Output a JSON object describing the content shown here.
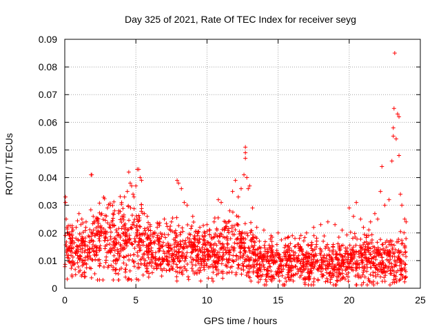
{
  "chart_data": {
    "type": "scatter",
    "title": "Day 325 of 2021, Rate Of TEC Index for receiver seyg",
    "xlabel": "GPS time / hours",
    "ylabel": "ROTI / TECUs",
    "xlim": [
      0,
      25
    ],
    "ylim": [
      0,
      0.09
    ],
    "x_ticks": [
      "0",
      "5",
      "10",
      "15",
      "20",
      "25"
    ],
    "y_ticks": [
      "0",
      "0.01",
      "0.02",
      "0.03",
      "0.04",
      "0.05",
      "0.06",
      "0.07",
      "0.08",
      "0.09"
    ],
    "grid": true,
    "marker": "+",
    "color": "#ff0000",
    "series": [
      {
        "points": [
          [
            0.05,
            0.033
          ],
          [
            0.05,
            0.031
          ],
          [
            0.1,
            0.025
          ],
          [
            0.15,
            0.022
          ],
          [
            0.3,
            0.02
          ],
          [
            0.5,
            0.019
          ],
          [
            0.8,
            0.022
          ],
          [
            1.0,
            0.027
          ],
          [
            1.2,
            0.025
          ],
          [
            1.5,
            0.024
          ],
          [
            1.85,
            0.041
          ],
          [
            1.9,
            0.041
          ],
          [
            2.0,
            0.026
          ],
          [
            2.3,
            0.025
          ],
          [
            2.6,
            0.027
          ],
          [
            3.0,
            0.029
          ],
          [
            3.2,
            0.03
          ],
          [
            3.5,
            0.028
          ],
          [
            3.8,
            0.028
          ],
          [
            4.0,
            0.031
          ],
          [
            4.2,
            0.033
          ],
          [
            4.4,
            0.035
          ],
          [
            4.5,
            0.042
          ],
          [
            4.6,
            0.038
          ],
          [
            4.7,
            0.037
          ],
          [
            4.8,
            0.034
          ],
          [
            5.0,
            0.037
          ],
          [
            5.1,
            0.043
          ],
          [
            5.2,
            0.043
          ],
          [
            5.3,
            0.04
          ],
          [
            5.4,
            0.039
          ],
          [
            5.6,
            0.027
          ],
          [
            5.8,
            0.026
          ],
          [
            6.0,
            0.023
          ],
          [
            6.5,
            0.022
          ],
          [
            7.0,
            0.025
          ],
          [
            7.5,
            0.024
          ],
          [
            7.9,
            0.039
          ],
          [
            8.0,
            0.038
          ],
          [
            8.2,
            0.036
          ],
          [
            8.4,
            0.031
          ],
          [
            8.6,
            0.03
          ],
          [
            9.0,
            0.026
          ],
          [
            9.5,
            0.022
          ],
          [
            10.0,
            0.023
          ],
          [
            10.5,
            0.024
          ],
          [
            10.8,
            0.032
          ],
          [
            11.0,
            0.031
          ],
          [
            11.3,
            0.024
          ],
          [
            11.6,
            0.028
          ],
          [
            11.8,
            0.035
          ],
          [
            12.0,
            0.039
          ],
          [
            12.2,
            0.033
          ],
          [
            12.4,
            0.036
          ],
          [
            12.6,
            0.041
          ],
          [
            12.7,
            0.051
          ],
          [
            12.7,
            0.049
          ],
          [
            12.7,
            0.047
          ],
          [
            12.8,
            0.04
          ],
          [
            12.9,
            0.036
          ],
          [
            13.0,
            0.037
          ],
          [
            13.2,
            0.029
          ],
          [
            13.5,
            0.022
          ],
          [
            14.0,
            0.021
          ],
          [
            14.5,
            0.019
          ],
          [
            15.0,
            0.02
          ],
          [
            15.5,
            0.018
          ],
          [
            16.0,
            0.019
          ],
          [
            16.5,
            0.018
          ],
          [
            17.0,
            0.02
          ],
          [
            17.5,
            0.022
          ],
          [
            18.0,
            0.023
          ],
          [
            18.5,
            0.024
          ],
          [
            19.0,
            0.023
          ],
          [
            19.5,
            0.021
          ],
          [
            20.0,
            0.029
          ],
          [
            20.3,
            0.026
          ],
          [
            20.5,
            0.031
          ],
          [
            20.8,
            0.025
          ],
          [
            21.0,
            0.022
          ],
          [
            21.5,
            0.024
          ],
          [
            21.8,
            0.027
          ],
          [
            22.0,
            0.025
          ],
          [
            22.2,
            0.035
          ],
          [
            22.3,
            0.044
          ],
          [
            22.5,
            0.03
          ],
          [
            22.8,
            0.032
          ],
          [
            23.0,
            0.046
          ],
          [
            23.1,
            0.055
          ],
          [
            23.1,
            0.058
          ],
          [
            23.15,
            0.065
          ],
          [
            23.2,
            0.085
          ],
          [
            23.3,
            0.054
          ],
          [
            23.4,
            0.063
          ],
          [
            23.5,
            0.062
          ],
          [
            23.5,
            0.048
          ],
          [
            23.6,
            0.034
          ],
          [
            23.7,
            0.03
          ],
          [
            23.9,
            0.025
          ],
          [
            24.0,
            0.024
          ]
        ]
      }
    ],
    "dense_band": {
      "x_range": [
        0,
        24
      ],
      "y_range_typical": [
        0.002,
        0.02
      ],
      "description_values": {
        "0-1.8": [
          0.005,
          0.022
        ],
        "1.8-5.5": [
          0.005,
          0.03
        ],
        "5.5-10": [
          0.004,
          0.022
        ],
        "10-13.5": [
          0.004,
          0.024
        ],
        "13.5-20": [
          0.002,
          0.017
        ],
        "20-24": [
          0.002,
          0.018
        ]
      }
    }
  }
}
